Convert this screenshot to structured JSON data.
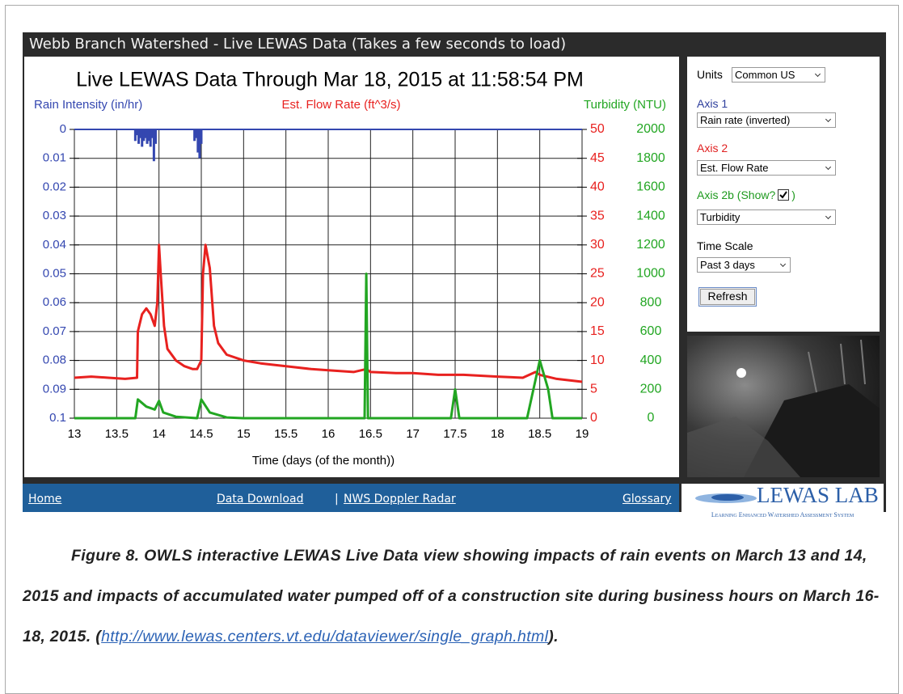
{
  "header": {
    "title": "Webb Branch Watershed - Live LEWAS Data (Takes a few seconds to load)"
  },
  "chart_data": {
    "type": "line",
    "title": "Live LEWAS Data Through Mar 18, 2015 at 11:58:54 PM",
    "xlabel": "Time (days (of the month))",
    "xlim": [
      13,
      19
    ],
    "xticks": [
      13,
      13.5,
      14,
      14.5,
      15,
      15.5,
      16,
      16.5,
      17,
      17.5,
      18,
      18.5,
      19
    ],
    "ylim": [
      0.1,
      0
    ],
    "yticks": [
      0,
      0.01,
      0.02,
      0.03,
      0.04,
      0.05,
      0.06,
      0.07,
      0.08,
      0.09,
      0.1
    ],
    "y2lim": [
      0,
      50
    ],
    "y2ticks": [
      0,
      5,
      10,
      15,
      20,
      25,
      30,
      35,
      40,
      45,
      50
    ],
    "y3lim": [
      0,
      2000
    ],
    "y3ticks": [
      0,
      200,
      400,
      600,
      800,
      1000,
      1200,
      1400,
      1600,
      1800,
      2000
    ],
    "grid": true,
    "series": [
      {
        "name": "Rain Intensity (in/hr)",
        "color": "#3447b0",
        "kind": "bar",
        "axis": "y",
        "x": [
          13.72,
          13.74,
          13.76,
          13.78,
          13.8,
          13.82,
          13.84,
          13.86,
          13.88,
          13.9,
          13.92,
          13.94,
          13.96,
          14.42,
          14.44,
          14.46,
          14.48,
          14.5
        ],
        "values": [
          0.004,
          0.002,
          0.005,
          0.003,
          0.006,
          0.004,
          0.003,
          0.005,
          0.004,
          0.006,
          0.003,
          0.011,
          0.005,
          0.004,
          0.003,
          0.008,
          0.01,
          0.005
        ]
      },
      {
        "name": "Est. Flow Rate (ft^3/s)",
        "color": "#e8211f",
        "kind": "line",
        "axis": "y2",
        "x": [
          13,
          13.2,
          13.4,
          13.6,
          13.74,
          13.75,
          13.8,
          13.85,
          13.9,
          13.95,
          13.98,
          14,
          14.02,
          14.06,
          14.1,
          14.2,
          14.3,
          14.4,
          14.45,
          14.5,
          14.52,
          14.55,
          14.6,
          14.65,
          14.7,
          14.8,
          15,
          15.2,
          15.5,
          15.8,
          16,
          16.3,
          16.45,
          16.5,
          16.8,
          17,
          17.3,
          17.6,
          18,
          18.3,
          18.45,
          18.5,
          18.7,
          19
        ],
        "values": [
          7,
          7.2,
          7,
          6.8,
          7,
          15,
          18,
          19,
          18,
          16,
          20,
          30,
          25,
          16,
          12,
          10,
          9,
          8.5,
          8.5,
          10,
          25,
          30,
          26,
          16,
          13,
          11,
          10,
          9.5,
          9,
          8.5,
          8.3,
          8,
          8.5,
          8,
          7.8,
          7.8,
          7.5,
          7.5,
          7.2,
          7,
          8,
          7.5,
          6.8,
          6.3
        ]
      },
      {
        "name": "Turbidity (NTU)",
        "color": "#22a622",
        "kind": "line",
        "axis": "y3",
        "x": [
          13,
          13.72,
          13.75,
          13.85,
          13.95,
          14,
          14.05,
          14.2,
          14.45,
          14.5,
          14.6,
          14.8,
          15,
          16.43,
          16.45,
          16.47,
          17.45,
          17.5,
          17.55,
          18.35,
          18.5,
          18.6,
          18.65,
          19
        ],
        "values": [
          0,
          0,
          130,
          80,
          60,
          120,
          40,
          10,
          0,
          130,
          40,
          5,
          0,
          0,
          1000,
          0,
          0,
          200,
          0,
          0,
          400,
          200,
          0,
          0
        ]
      }
    ]
  },
  "panel": {
    "units_label": "Units",
    "units": "Common US",
    "axis1_label": "Axis 1",
    "axis1": "Rain rate (inverted)",
    "axis2_label": "Axis 2",
    "axis2": "Est. Flow Rate",
    "axis2b_label": "Axis 2b (Show?",
    "axis2b_close": ")",
    "axis2b": "Turbidity",
    "time_label": "Time Scale",
    "time": "Past 3 days",
    "refresh": "Refresh"
  },
  "footer": {
    "home": "Home",
    "download": "Data Download",
    "sep": "|",
    "radar": "NWS Doppler Radar",
    "glossary": "Glossary"
  },
  "logo": {
    "title": "LEWAS LAB",
    "subtitle": "Learning Enhanced Watershed Assessment System"
  },
  "caption": {
    "text": "Figure 8. OWLS interactive LEWAS Live Data view showing impacts of rain events on March 13 and 14, 2015 and impacts of accumulated water pumped off of a construction site during business hours on March 16-18, 2015. (",
    "link": "http://www.lewas.centers.vt.edu/dataviewer/single_graph.html",
    "end": ")."
  }
}
